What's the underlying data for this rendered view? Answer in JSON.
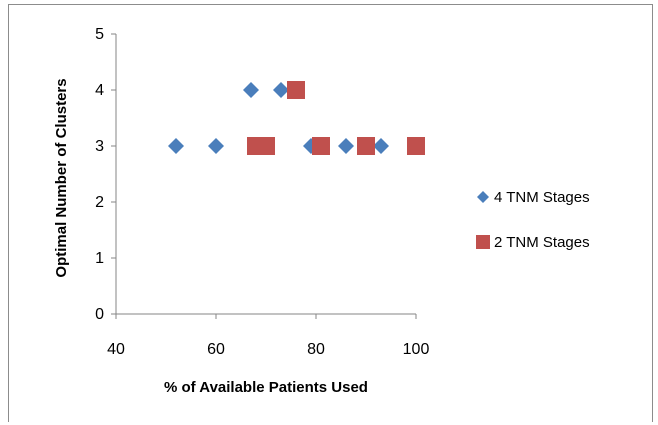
{
  "chart_data": {
    "type": "scatter",
    "xlabel": "% of Available Patients Used",
    "ylabel": "Optimal Number of Clusters",
    "xlim": [
      40,
      100
    ],
    "ylim": [
      0,
      5
    ],
    "xticks": [
      40,
      60,
      80,
      100
    ],
    "yticks": [
      0,
      1,
      2,
      3,
      4,
      5
    ],
    "grid": false,
    "legend_position": "right",
    "series": [
      {
        "name": "4 TNM Stages",
        "marker": "diamond",
        "color": "#4a7ebb",
        "points": [
          {
            "x": 52,
            "y": 3
          },
          {
            "x": 60,
            "y": 3
          },
          {
            "x": 67,
            "y": 4
          },
          {
            "x": 73,
            "y": 4
          },
          {
            "x": 79,
            "y": 3
          },
          {
            "x": 86,
            "y": 3
          },
          {
            "x": 93,
            "y": 3
          },
          {
            "x": 100,
            "y": 3
          }
        ]
      },
      {
        "name": "2 TNM Stages",
        "marker": "square",
        "color": "#c0504d",
        "points": [
          {
            "x": 68,
            "y": 3
          },
          {
            "x": 70,
            "y": 3
          },
          {
            "x": 76,
            "y": 4
          },
          {
            "x": 81,
            "y": 3
          },
          {
            "x": 90,
            "y": 3
          },
          {
            "x": 100,
            "y": 3
          }
        ]
      }
    ]
  }
}
